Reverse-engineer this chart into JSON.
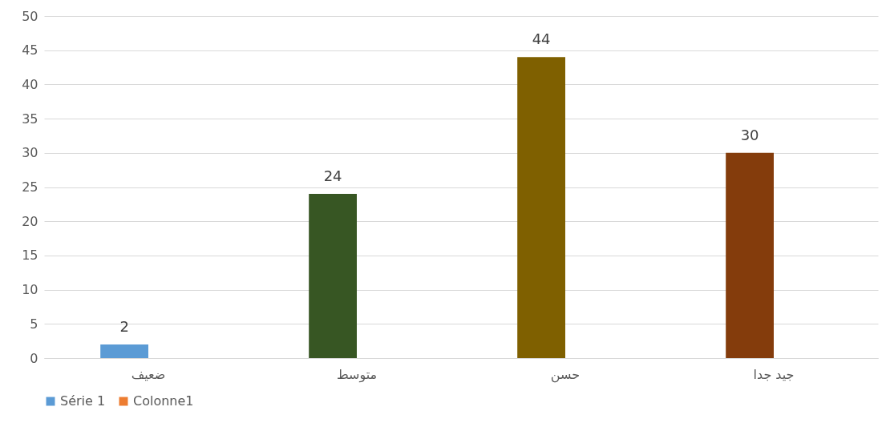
{
  "chart_data": {
    "type": "bar",
    "categories": [
      "ضعيف",
      "متوسط",
      "حسن",
      "جيد جدا"
    ],
    "series": [
      {
        "name": "Série 1",
        "color": "#5b9bd5",
        "colors": [
          "#5b9bd5",
          "#375623",
          "#7f6000",
          "#843c0c"
        ],
        "values": [
          2,
          24,
          44,
          30
        ]
      },
      {
        "name": "Colonne1",
        "color": "#ed7d31",
        "values": [
          null,
          null,
          null,
          null
        ]
      }
    ],
    "ylim": [
      0,
      50
    ],
    "yticks": [
      0,
      5,
      10,
      15,
      20,
      25,
      30,
      35,
      40,
      45,
      50
    ],
    "grid": "y",
    "legend": "bottom",
    "data_labels": true
  }
}
